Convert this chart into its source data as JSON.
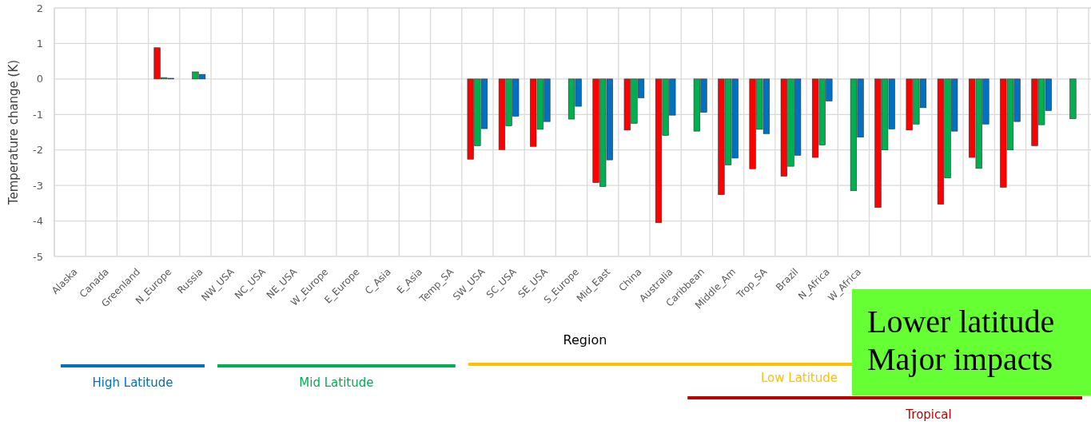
{
  "chart_data": {
    "type": "bar",
    "xlabel": "Region",
    "ylabel": "Temperature change (K)",
    "categories": [
      "Alaska",
      "Canada",
      "Greenland",
      "N_Europe",
      "Russia",
      "NW_USA",
      "NC_USA",
      "NE_USA",
      "W_Europe",
      "E_Europe",
      "C_Asia",
      "E_Asia",
      "Temp_SA",
      "SW_USA",
      "SC_USA",
      "SE_USA",
      "S_Europe",
      "Mid_East",
      "China",
      "Australia",
      "Caribbean",
      "Middle_Am",
      "Trop_SA",
      "Brazil",
      "N_Africa",
      "W_Africa",
      null,
      null,
      null,
      null,
      null,
      null,
      null
    ],
    "series": [
      {
        "color": "#ff0000",
        "values": [
          null,
          null,
          null,
          0.88,
          null,
          null,
          null,
          null,
          null,
          null,
          null,
          null,
          null,
          -2.26,
          -1.99,
          -1.9,
          null,
          -2.92,
          -1.44,
          -4.05,
          null,
          -3.26,
          -2.53,
          -2.74,
          -2.21,
          null,
          -3.62,
          -1.44,
          -3.53,
          -2.21,
          -3.05,
          -1.88,
          null
        ]
      },
      {
        "color": "#00b050",
        "values": [
          null,
          null,
          null,
          0.04,
          0.2,
          null,
          null,
          null,
          null,
          null,
          null,
          null,
          null,
          -1.88,
          -1.32,
          -1.42,
          -1.13,
          -3.03,
          -1.25,
          -1.59,
          -1.47,
          -2.42,
          -1.42,
          -2.46,
          -1.86,
          -3.15,
          -2.0,
          -1.27,
          -2.79,
          -2.52,
          -2.0,
          -1.29,
          -1.12
        ]
      },
      {
        "color": "#0070c0",
        "values": [
          null,
          null,
          null,
          0.02,
          0.13,
          null,
          null,
          null,
          null,
          null,
          null,
          null,
          null,
          -1.4,
          -1.05,
          -1.2,
          -0.77,
          -2.28,
          -0.53,
          -1.02,
          -0.94,
          -2.23,
          -1.54,
          -2.15,
          -0.62,
          -1.64,
          -1.41,
          -0.81,
          -1.47,
          -1.27,
          -1.2,
          -0.89,
          null
        ]
      }
    ],
    "ylim": [
      -5,
      2
    ],
    "yticks": [
      -5,
      -4,
      -3,
      -2,
      -1,
      0,
      1,
      2
    ],
    "grid": true,
    "annotations": [
      "High Latitude",
      "Mid Latitude",
      "Low Latitude",
      "Tropical",
      "Lower latitude\nMajor impacts"
    ]
  }
}
